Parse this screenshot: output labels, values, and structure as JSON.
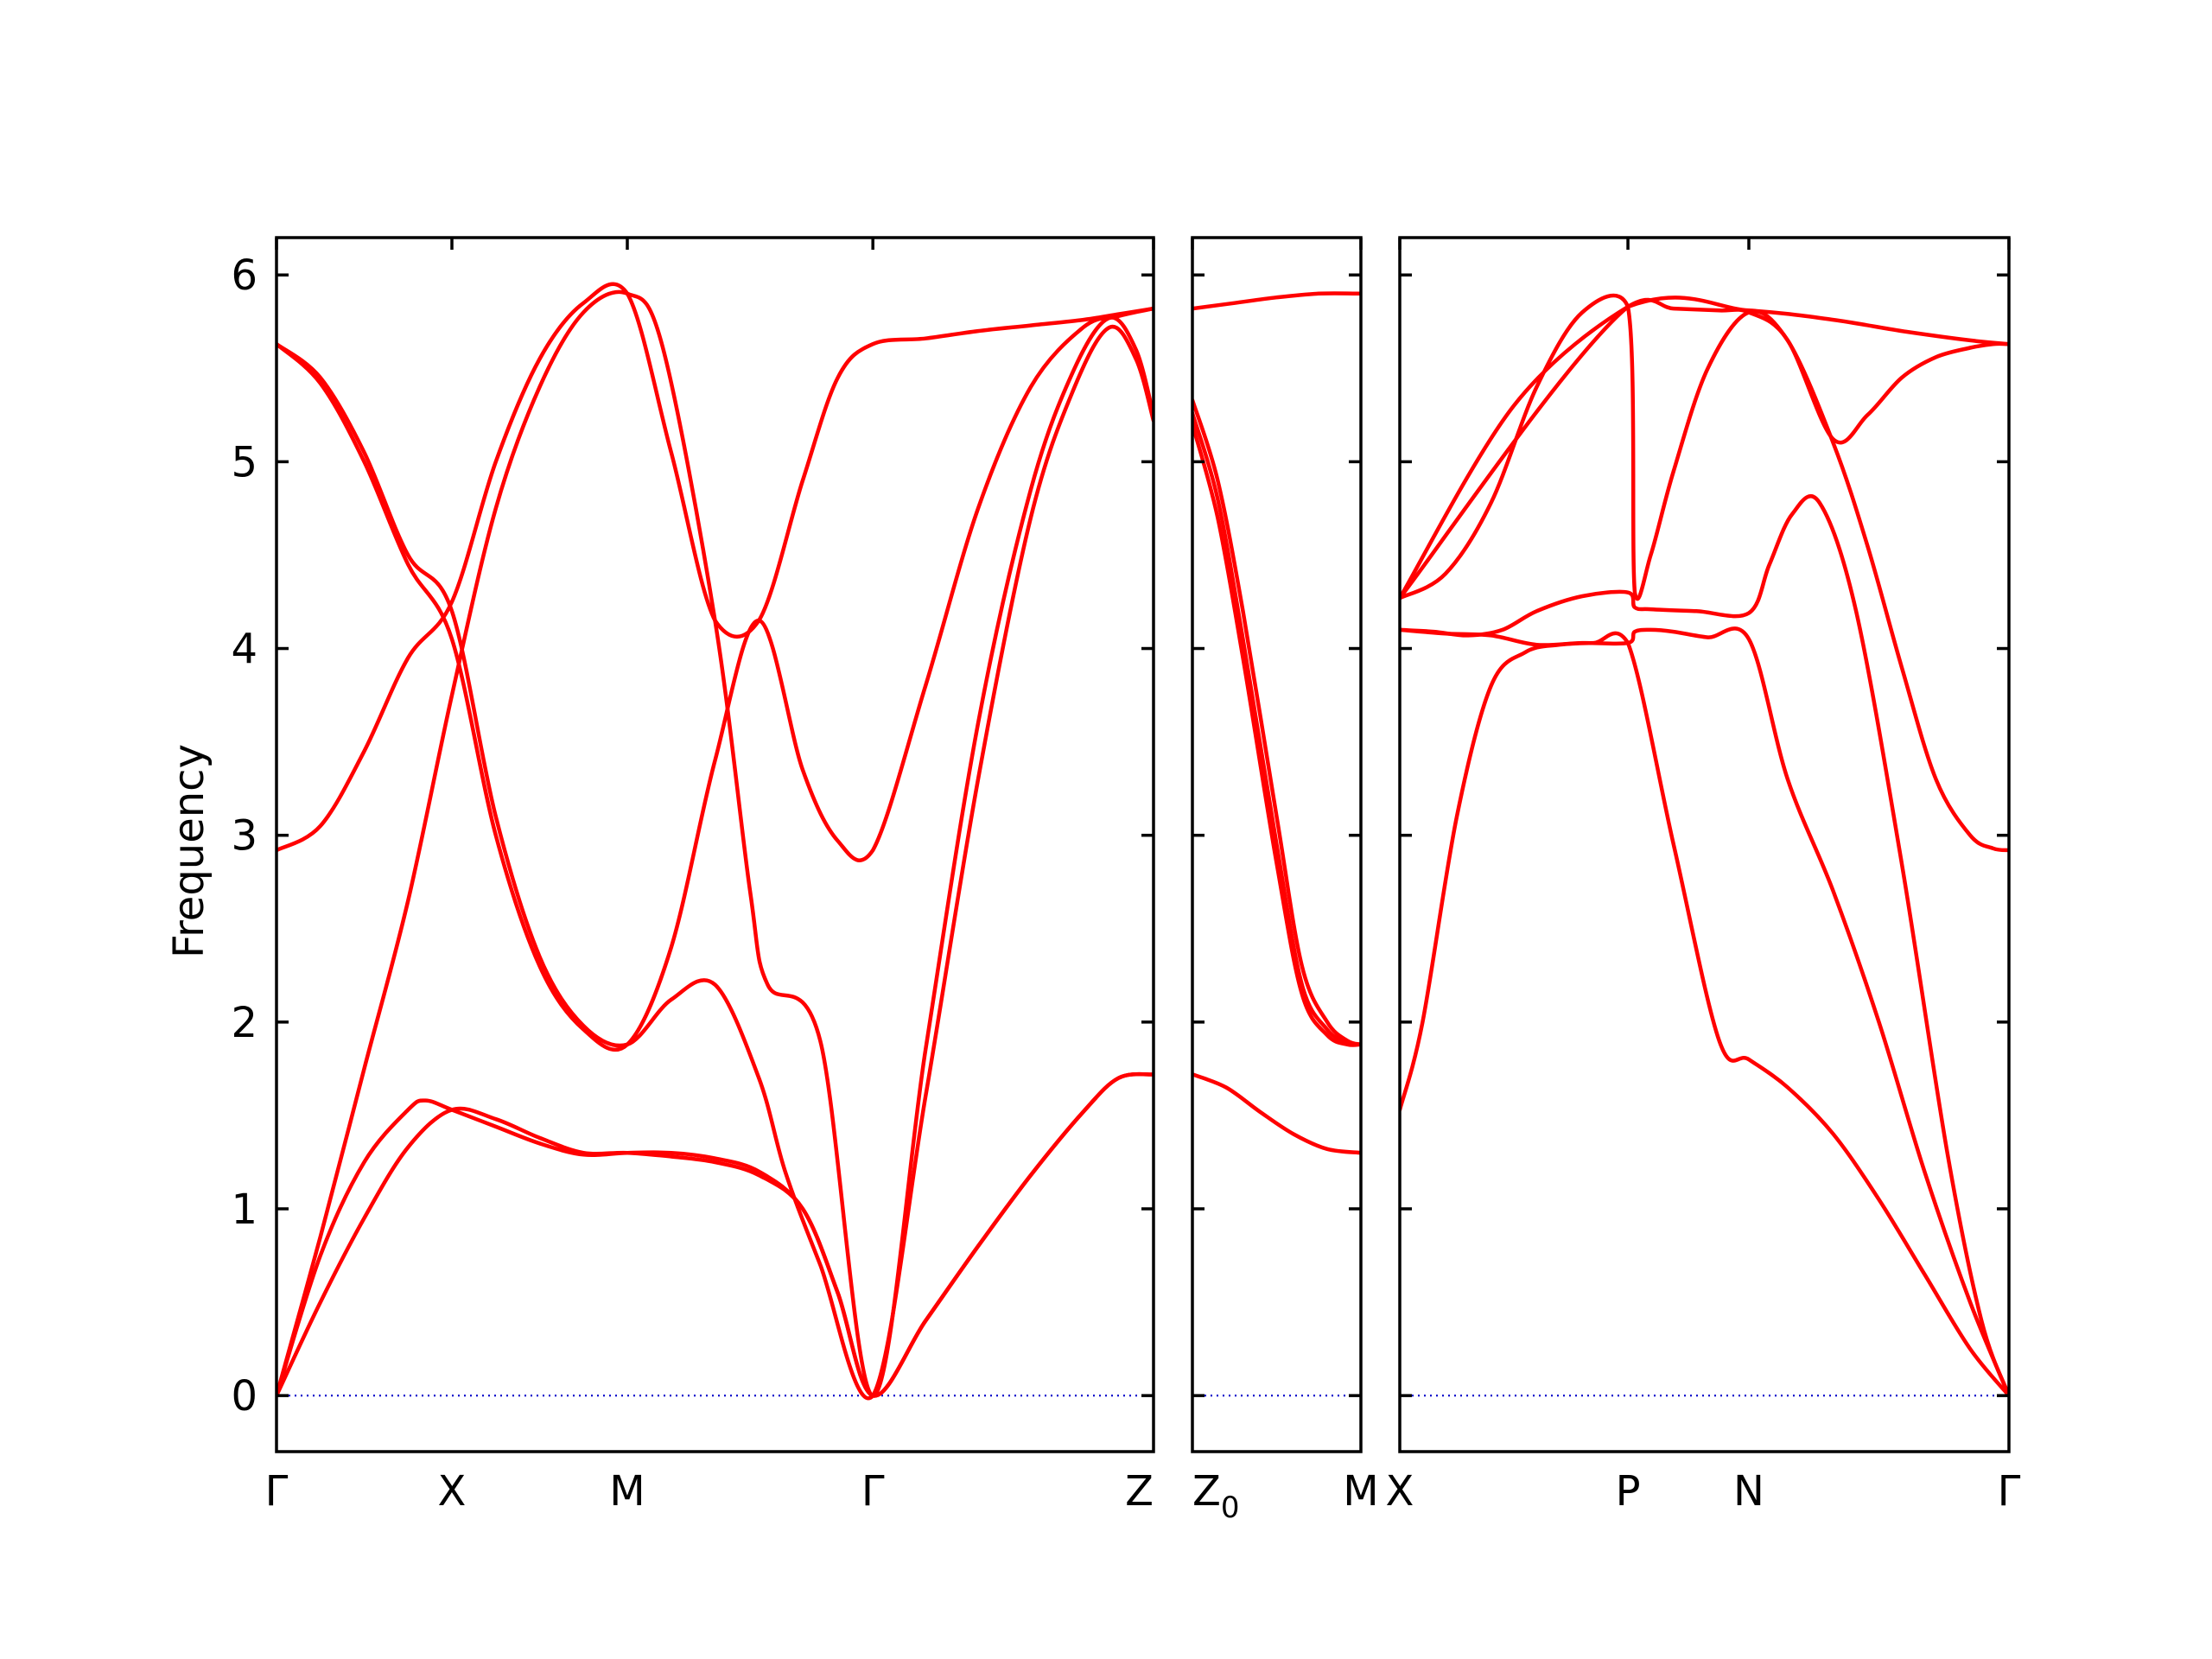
{
  "colors": {
    "band": "#ff0000",
    "zero_line": "#0000cc",
    "axes": "#000000",
    "background": "#ffffff"
  },
  "chart_data": {
    "type": "line",
    "ylabel": "Frequency",
    "ylim": [
      -0.3,
      6.2
    ],
    "yticks": [
      0,
      1,
      2,
      3,
      4,
      5,
      6
    ],
    "grid": false,
    "zero_line": {
      "y": 0,
      "style": "dotted"
    },
    "panels": [
      {
        "xlim": [
          0,
          5
        ],
        "ticks": [
          {
            "x": 0,
            "label": "Γ"
          },
          {
            "x": 1,
            "label": "X"
          },
          {
            "x": 2,
            "label": "M"
          },
          {
            "x": 3.4,
            "label": "Γ"
          },
          {
            "x": 5,
            "label": "Z"
          }
        ],
        "series": [
          {
            "x": [
              0,
              0.25,
              0.5,
              0.75,
              1,
              1.25,
              1.5,
              1.75,
              2,
              2.25,
              2.5,
              2.75,
              3,
              3.2,
              3.4,
              3.7,
              4,
              4.3,
              4.6,
              4.8,
              5
            ],
            "values": [
              0,
              0.5,
              0.95,
              1.33,
              1.53,
              1.48,
              1.38,
              1.3,
              1.3,
              1.28,
              1.25,
              1.18,
              1.0,
              0.55,
              0,
              0.4,
              0.8,
              1.18,
              1.52,
              1.7,
              1.72
            ]
          },
          {
            "x": [
              0,
              0.25,
              0.5,
              0.75,
              0.85,
              1,
              1.25,
              1.5,
              1.75,
              2,
              2.25,
              2.5,
              2.75,
              3,
              3.2,
              3.4,
              3.7,
              4,
              4.3,
              4.6,
              4.8,
              5
            ],
            "values": [
              0,
              0.75,
              1.25,
              1.53,
              1.58,
              1.53,
              1.44,
              1.35,
              1.29,
              1.3,
              1.3,
              1.27,
              1.2,
              1.0,
              0.55,
              0,
              0.4,
              0.8,
              1.18,
              1.52,
              1.7,
              1.72
            ]
          },
          {
            "x": [
              0,
              0.25,
              0.5,
              0.75,
              1,
              1.25,
              1.5,
              1.75,
              2,
              2.2,
              2.5,
              2.7,
              2.8,
              3.1,
              3.4,
              3.7,
              4,
              4.3,
              4.55,
              4.75,
              4.9,
              5
            ],
            "values": [
              0,
              0.85,
              1.75,
              2.65,
              3.75,
              4.75,
              5.4,
              5.8,
              5.9,
              5.62,
              4.15,
              2.7,
              2.2,
              1.9,
              0,
              1.85,
              3.6,
              4.85,
              5.5,
              5.77,
              5.6,
              5.25
            ]
          },
          {
            "x": [
              0,
              0.25,
              0.5,
              0.75,
              1,
              1.25,
              1.5,
              1.75,
              2,
              2.25,
              2.5,
              2.75,
              2.9,
              3.1,
              3.4,
              3.7,
              4,
              4.3,
              4.55,
              4.75,
              4.9,
              5
            ],
            "values": [
              5.63,
              5.45,
              5.05,
              4.5,
              4.2,
              3.1,
              2.35,
              1.98,
              1.88,
              2.12,
              2.2,
              1.7,
              1.2,
              0.7,
              0,
              1.6,
              3.3,
              4.7,
              5.4,
              5.72,
              5.55,
              5.22
            ]
          },
          {
            "x": [
              0,
              0.25,
              0.5,
              0.75,
              1,
              1.25,
              1.5,
              1.75,
              2,
              2.25,
              2.5,
              2.75,
              3,
              3.2,
              3.4,
              3.7,
              4,
              4.3,
              4.6,
              4.8,
              5
            ],
            "values": [
              5.63,
              5.42,
              5.0,
              4.45,
              4.05,
              3.0,
              2.3,
              1.96,
              1.88,
              2.4,
              3.4,
              4.15,
              3.35,
              2.97,
              2.92,
              3.8,
              4.75,
              5.4,
              5.72,
              5.78,
              5.82
            ]
          },
          {
            "x": [
              0,
              0.25,
              0.5,
              0.75,
              1,
              1.25,
              1.5,
              1.75,
              2,
              2.25,
              2.5,
              2.75,
              3,
              3.2,
              3.4,
              3.7,
              4,
              4.3,
              4.6,
              4.8,
              5
            ],
            "values": [
              2.92,
              3.05,
              3.45,
              3.95,
              4.25,
              5.0,
              5.55,
              5.85,
              5.9,
              5.05,
              4.15,
              4.15,
              4.9,
              5.45,
              5.63,
              5.66,
              5.7,
              5.73,
              5.76,
              5.79,
              5.82
            ]
          }
        ]
      },
      {
        "xlim": [
          0,
          1
        ],
        "ticks": [
          {
            "x": 0,
            "label": "Z0"
          },
          {
            "x": 1,
            "label": "M"
          }
        ],
        "series": [
          {
            "x": [
              0,
              0.2,
              0.4,
              0.6,
              0.8,
              1
            ],
            "values": [
              1.72,
              1.65,
              1.52,
              1.4,
              1.32,
              1.3
            ]
          },
          {
            "x": [
              0,
              0.15,
              0.3,
              0.5,
              0.65,
              0.8,
              0.92,
              1
            ],
            "values": [
              5.33,
              4.9,
              4.2,
              3.1,
              2.3,
              2.0,
              1.9,
              1.88
            ]
          },
          {
            "x": [
              0,
              0.15,
              0.3,
              0.5,
              0.65,
              0.8,
              0.92,
              1
            ],
            "values": [
              5.26,
              4.8,
              4.05,
              2.95,
              2.2,
              1.96,
              1.89,
              1.88
            ]
          },
          {
            "x": [
              0,
              0.15,
              0.3,
              0.5,
              0.65,
              0.8,
              0.92,
              1
            ],
            "values": [
              5.2,
              4.7,
              3.95,
              2.85,
              2.15,
              1.93,
              1.88,
              1.88
            ]
          },
          {
            "x": [
              0,
              0.25,
              0.5,
              0.75,
              1
            ],
            "values": [
              5.82,
              5.85,
              5.88,
              5.9,
              5.9
            ]
          }
        ]
      },
      {
        "xlim": [
          0,
          2.67
        ],
        "ticks": [
          {
            "x": 0,
            "label": "X"
          },
          {
            "x": 1,
            "label": "P"
          },
          {
            "x": 1.53,
            "label": "N"
          },
          {
            "x": 2.67,
            "label": "Γ"
          }
        ],
        "series": [
          {
            "x": [
              0,
              0.1,
              0.25,
              0.4,
              0.55,
              0.7,
              0.85,
              1,
              1.2,
              1.4,
              1.53,
              1.7,
              1.9,
              2.1,
              2.3,
              2.5,
              2.67
            ],
            "values": [
              1.53,
              2.0,
              3.1,
              3.8,
              3.98,
              4.02,
              4.03,
              4.03,
              2.95,
              1.9,
              1.8,
              1.65,
              1.4,
              1.05,
              0.65,
              0.25,
              0
            ]
          },
          {
            "x": [
              0,
              0.2,
              0.4,
              0.6,
              0.8,
              1,
              1.03,
              1.1,
              1.2,
              1.35,
              1.53,
              1.7,
              1.9,
              2.1,
              2.3,
              2.5,
              2.67
            ],
            "values": [
              4.1,
              4.08,
              4.07,
              4.02,
              4.03,
              4.03,
              4.09,
              4.1,
              4.09,
              4.06,
              4.05,
              3.3,
              2.7,
              2.0,
              1.2,
              0.5,
              0
            ]
          },
          {
            "x": [
              0,
              0.15,
              0.3,
              0.45,
              0.6,
              0.8,
              1,
              1.03,
              1.1,
              1.3,
              1.53,
              1.62,
              1.72,
              1.84,
              2.0,
              2.2,
              2.4,
              2.55,
              2.67
            ],
            "values": [
              4.1,
              4.09,
              4.07,
              4.1,
              4.2,
              4.28,
              4.3,
              4.22,
              4.21,
              4.2,
              4.19,
              4.45,
              4.72,
              4.78,
              4.2,
              2.85,
              1.3,
              0.4,
              0
            ]
          },
          {
            "x": [
              0,
              0.2,
              0.4,
              0.6,
              0.8,
              1,
              1.03,
              1.1,
              1.2,
              1.35,
              1.53,
              1.7,
              1.9,
              2.05,
              2.2,
              2.35,
              2.5,
              2.6,
              2.67
            ],
            "values": [
              4.27,
              4.4,
              4.78,
              5.4,
              5.8,
              5.83,
              4.3,
              4.5,
              4.95,
              5.5,
              5.8,
              5.65,
              5.12,
              5.25,
              5.45,
              5.56,
              5.61,
              5.63,
              5.63
            ]
          },
          {
            "x": [
              0,
              0.5,
              1,
              1.2,
              1.4,
              1.53,
              1.7,
              1.9,
              2.05,
              2.2,
              2.35,
              2.5,
              2.6,
              2.67
            ],
            "values": [
              4.27,
              5.3,
              5.83,
              5.82,
              5.81,
              5.8,
              5.65,
              5.1,
              4.55,
              3.9,
              3.3,
              3.0,
              2.93,
              2.92
            ]
          },
          {
            "x": [
              0,
              1,
              1.53,
              1.9,
              2.2,
              2.5,
              2.67
            ],
            "values": [
              4.27,
              5.83,
              5.81,
              5.76,
              5.7,
              5.65,
              5.63
            ]
          }
        ]
      }
    ]
  }
}
